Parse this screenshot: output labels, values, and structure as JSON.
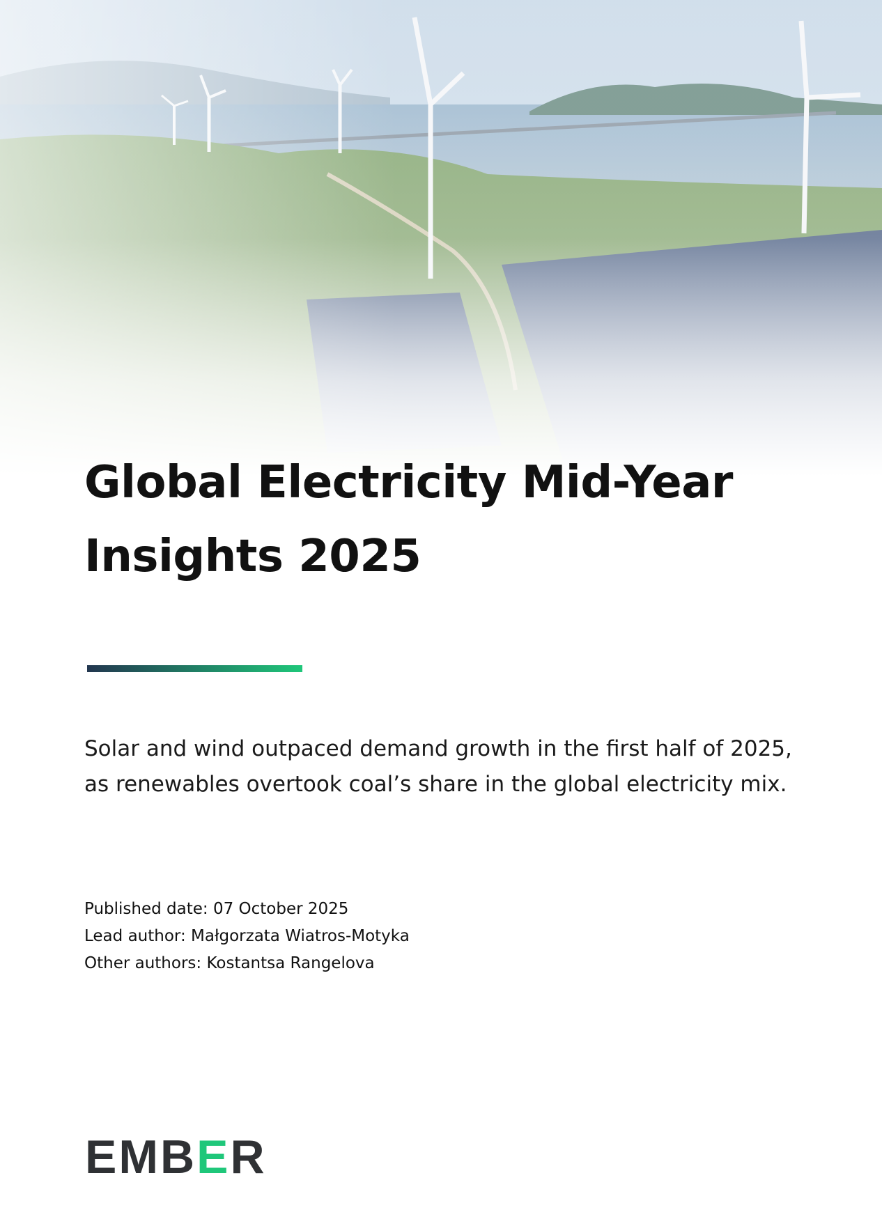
{
  "header": {
    "title": "Global Electricity Mid-Year Insights 2025",
    "subtitle": "Solar and wind outpaced demand growth in the first half of 2025, as renewables overtook coal’s share in the global electricity mix."
  },
  "meta": [
    "Published date: 07 October 2025",
    "Lead author: Małgorzata Wiatros-Motyka",
    "Other authors: Kostantsa Rangelova"
  ],
  "logo": "EMBER"
}
